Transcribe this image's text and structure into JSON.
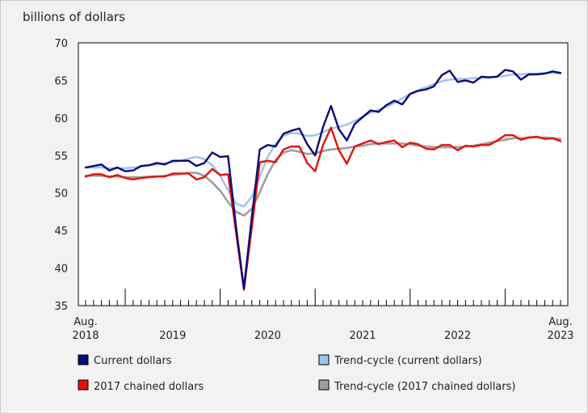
{
  "chart_data": {
    "type": "line",
    "unit_label": "billions of dollars",
    "ylim": [
      35,
      70
    ],
    "yticks": [
      35,
      40,
      45,
      50,
      55,
      60,
      65,
      70
    ],
    "x_start": "2018-08",
    "x_end": "2023-08",
    "grid": false,
    "legend_position": "bottom",
    "x_tick_labels": [
      {
        "month": "2018-08",
        "lines": [
          "Aug.",
          "2018"
        ]
      },
      {
        "month": "2019-07",
        "lines": [
          "",
          "2019"
        ]
      },
      {
        "month": "2020-07",
        "lines": [
          "",
          "2020"
        ]
      },
      {
        "month": "2021-07",
        "lines": [
          "",
          "2021"
        ]
      },
      {
        "month": "2022-07",
        "lines": [
          "",
          "2022"
        ]
      },
      {
        "month": "2023-08",
        "lines": [
          "Aug.",
          "2023"
        ]
      }
    ],
    "series": [
      {
        "name": "Current dollars",
        "color": "#0a0a78",
        "width": 2.4,
        "legend_slot": 0,
        "values": [
          53.4,
          53.6,
          53.8,
          53.0,
          53.4,
          52.9,
          53.0,
          53.6,
          53.7,
          54.0,
          53.8,
          54.3,
          54.3,
          54.3,
          53.6,
          54.0,
          55.4,
          54.8,
          54.9,
          45.5,
          37.3,
          46.8,
          55.8,
          56.4,
          56.2,
          57.9,
          58.3,
          58.6,
          56.5,
          55.0,
          58.8,
          61.6,
          58.5,
          57.0,
          59.2,
          60.1,
          61.0,
          60.8,
          61.7,
          62.3,
          61.8,
          63.2,
          63.6,
          63.8,
          64.2,
          65.7,
          66.3,
          64.8,
          65.0,
          64.7,
          65.5,
          65.4,
          65.5,
          66.4,
          66.2,
          65.1,
          65.8,
          65.8,
          65.9,
          66.2,
          66.0
        ]
      },
      {
        "name": "Trend-cycle (current dollars)",
        "color": "#9dc3ec",
        "width": 2.4,
        "legend_slot": 1,
        "values": [
          53.4,
          53.4,
          53.4,
          53.3,
          53.3,
          53.3,
          53.4,
          53.5,
          53.7,
          53.8,
          54.0,
          54.1,
          54.3,
          54.6,
          54.8,
          54.5,
          53.7,
          52.3,
          50.4,
          48.6,
          48.2,
          49.5,
          52.2,
          54.8,
          56.6,
          57.6,
          58.0,
          57.9,
          57.6,
          57.7,
          58.1,
          58.6,
          58.8,
          59.1,
          59.6,
          60.2,
          60.7,
          61.1,
          61.5,
          62.0,
          62.6,
          63.2,
          63.7,
          64.1,
          64.5,
          64.9,
          65.1,
          65.2,
          65.2,
          65.3,
          65.3,
          65.4,
          65.5,
          65.6,
          65.8,
          65.8,
          65.9,
          65.9,
          66.0,
          66.0,
          65.9
        ]
      },
      {
        "name": "2017 chained dollars",
        "color": "#e3120b",
        "width": 2.4,
        "legend_slot": 2,
        "values": [
          52.2,
          52.5,
          52.5,
          52.1,
          52.4,
          52.0,
          51.8,
          52.0,
          52.1,
          52.2,
          52.2,
          52.6,
          52.6,
          52.6,
          51.8,
          52.1,
          53.2,
          52.4,
          52.5,
          44.8,
          37.1,
          45.4,
          54.1,
          54.3,
          54.1,
          55.8,
          56.2,
          56.2,
          54.0,
          52.9,
          56.4,
          58.7,
          55.7,
          53.9,
          56.2,
          56.6,
          57.0,
          56.5,
          56.8,
          57.0,
          56.1,
          56.7,
          56.5,
          55.9,
          55.8,
          56.4,
          56.4,
          55.7,
          56.3,
          56.2,
          56.4,
          56.4,
          57.0,
          57.7,
          57.7,
          57.1,
          57.4,
          57.5,
          57.2,
          57.3,
          56.9
        ]
      },
      {
        "name": "Trend-cycle (2017 chained dollars)",
        "color": "#9e9e9e",
        "width": 2.6,
        "legend_slot": 3,
        "values": [
          52.3,
          52.3,
          52.3,
          52.2,
          52.2,
          52.1,
          52.1,
          52.1,
          52.2,
          52.2,
          52.3,
          52.4,
          52.5,
          52.7,
          52.7,
          52.3,
          51.4,
          50.3,
          48.8,
          47.5,
          47.0,
          47.9,
          50.1,
          52.5,
          54.4,
          55.4,
          55.7,
          55.5,
          55.2,
          55.3,
          55.6,
          55.8,
          55.9,
          56.0,
          56.2,
          56.3,
          56.5,
          56.6,
          56.6,
          56.6,
          56.6,
          56.5,
          56.3,
          56.2,
          56.1,
          56.1,
          56.1,
          56.1,
          56.2,
          56.3,
          56.5,
          56.7,
          56.9,
          57.1,
          57.3,
          57.3,
          57.4,
          57.4,
          57.4,
          57.3,
          57.2
        ]
      }
    ]
  }
}
